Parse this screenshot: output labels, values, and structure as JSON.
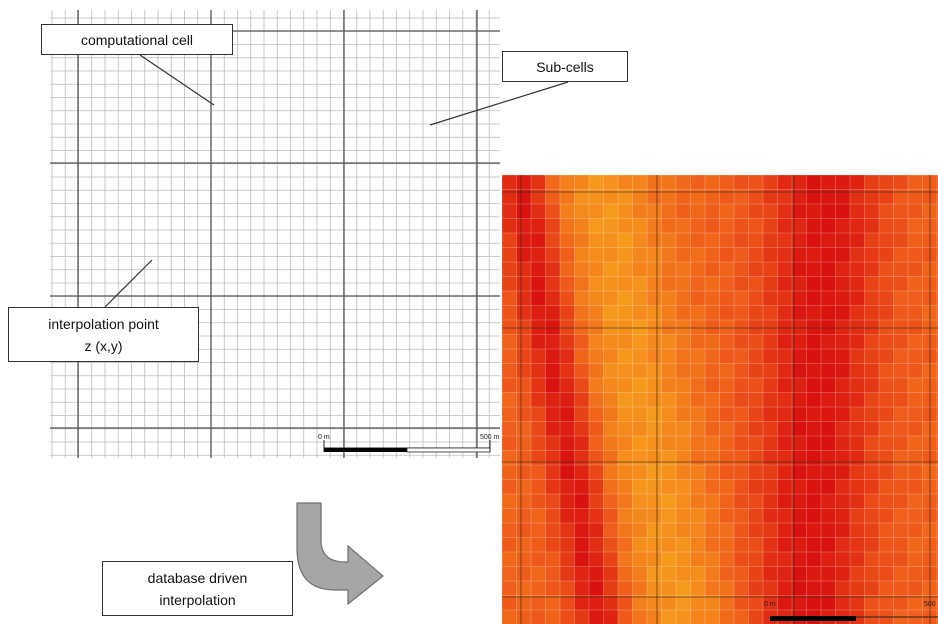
{
  "labels": {
    "computational_cell": "computational cell",
    "sub_cells": "Sub-cells",
    "interpolation_point_line1": "interpolation point",
    "interpolation_point_line2": "z (x,y)",
    "database_driven_line1": "database driven",
    "database_driven_line2": "interpolation"
  },
  "scale_bar": {
    "start_label": "0 m",
    "end_label": "500 m",
    "end_label_cropped": "500"
  },
  "colors": {
    "fine_grid": "#bdbdbd",
    "coarse_grid": "#555555",
    "leader_line": "#333333",
    "arrow_fill": "#a6a6a6",
    "heat_low": "#f7a21c",
    "heat_mid": "#ef5a1a",
    "heat_high": "#d9120f"
  }
}
